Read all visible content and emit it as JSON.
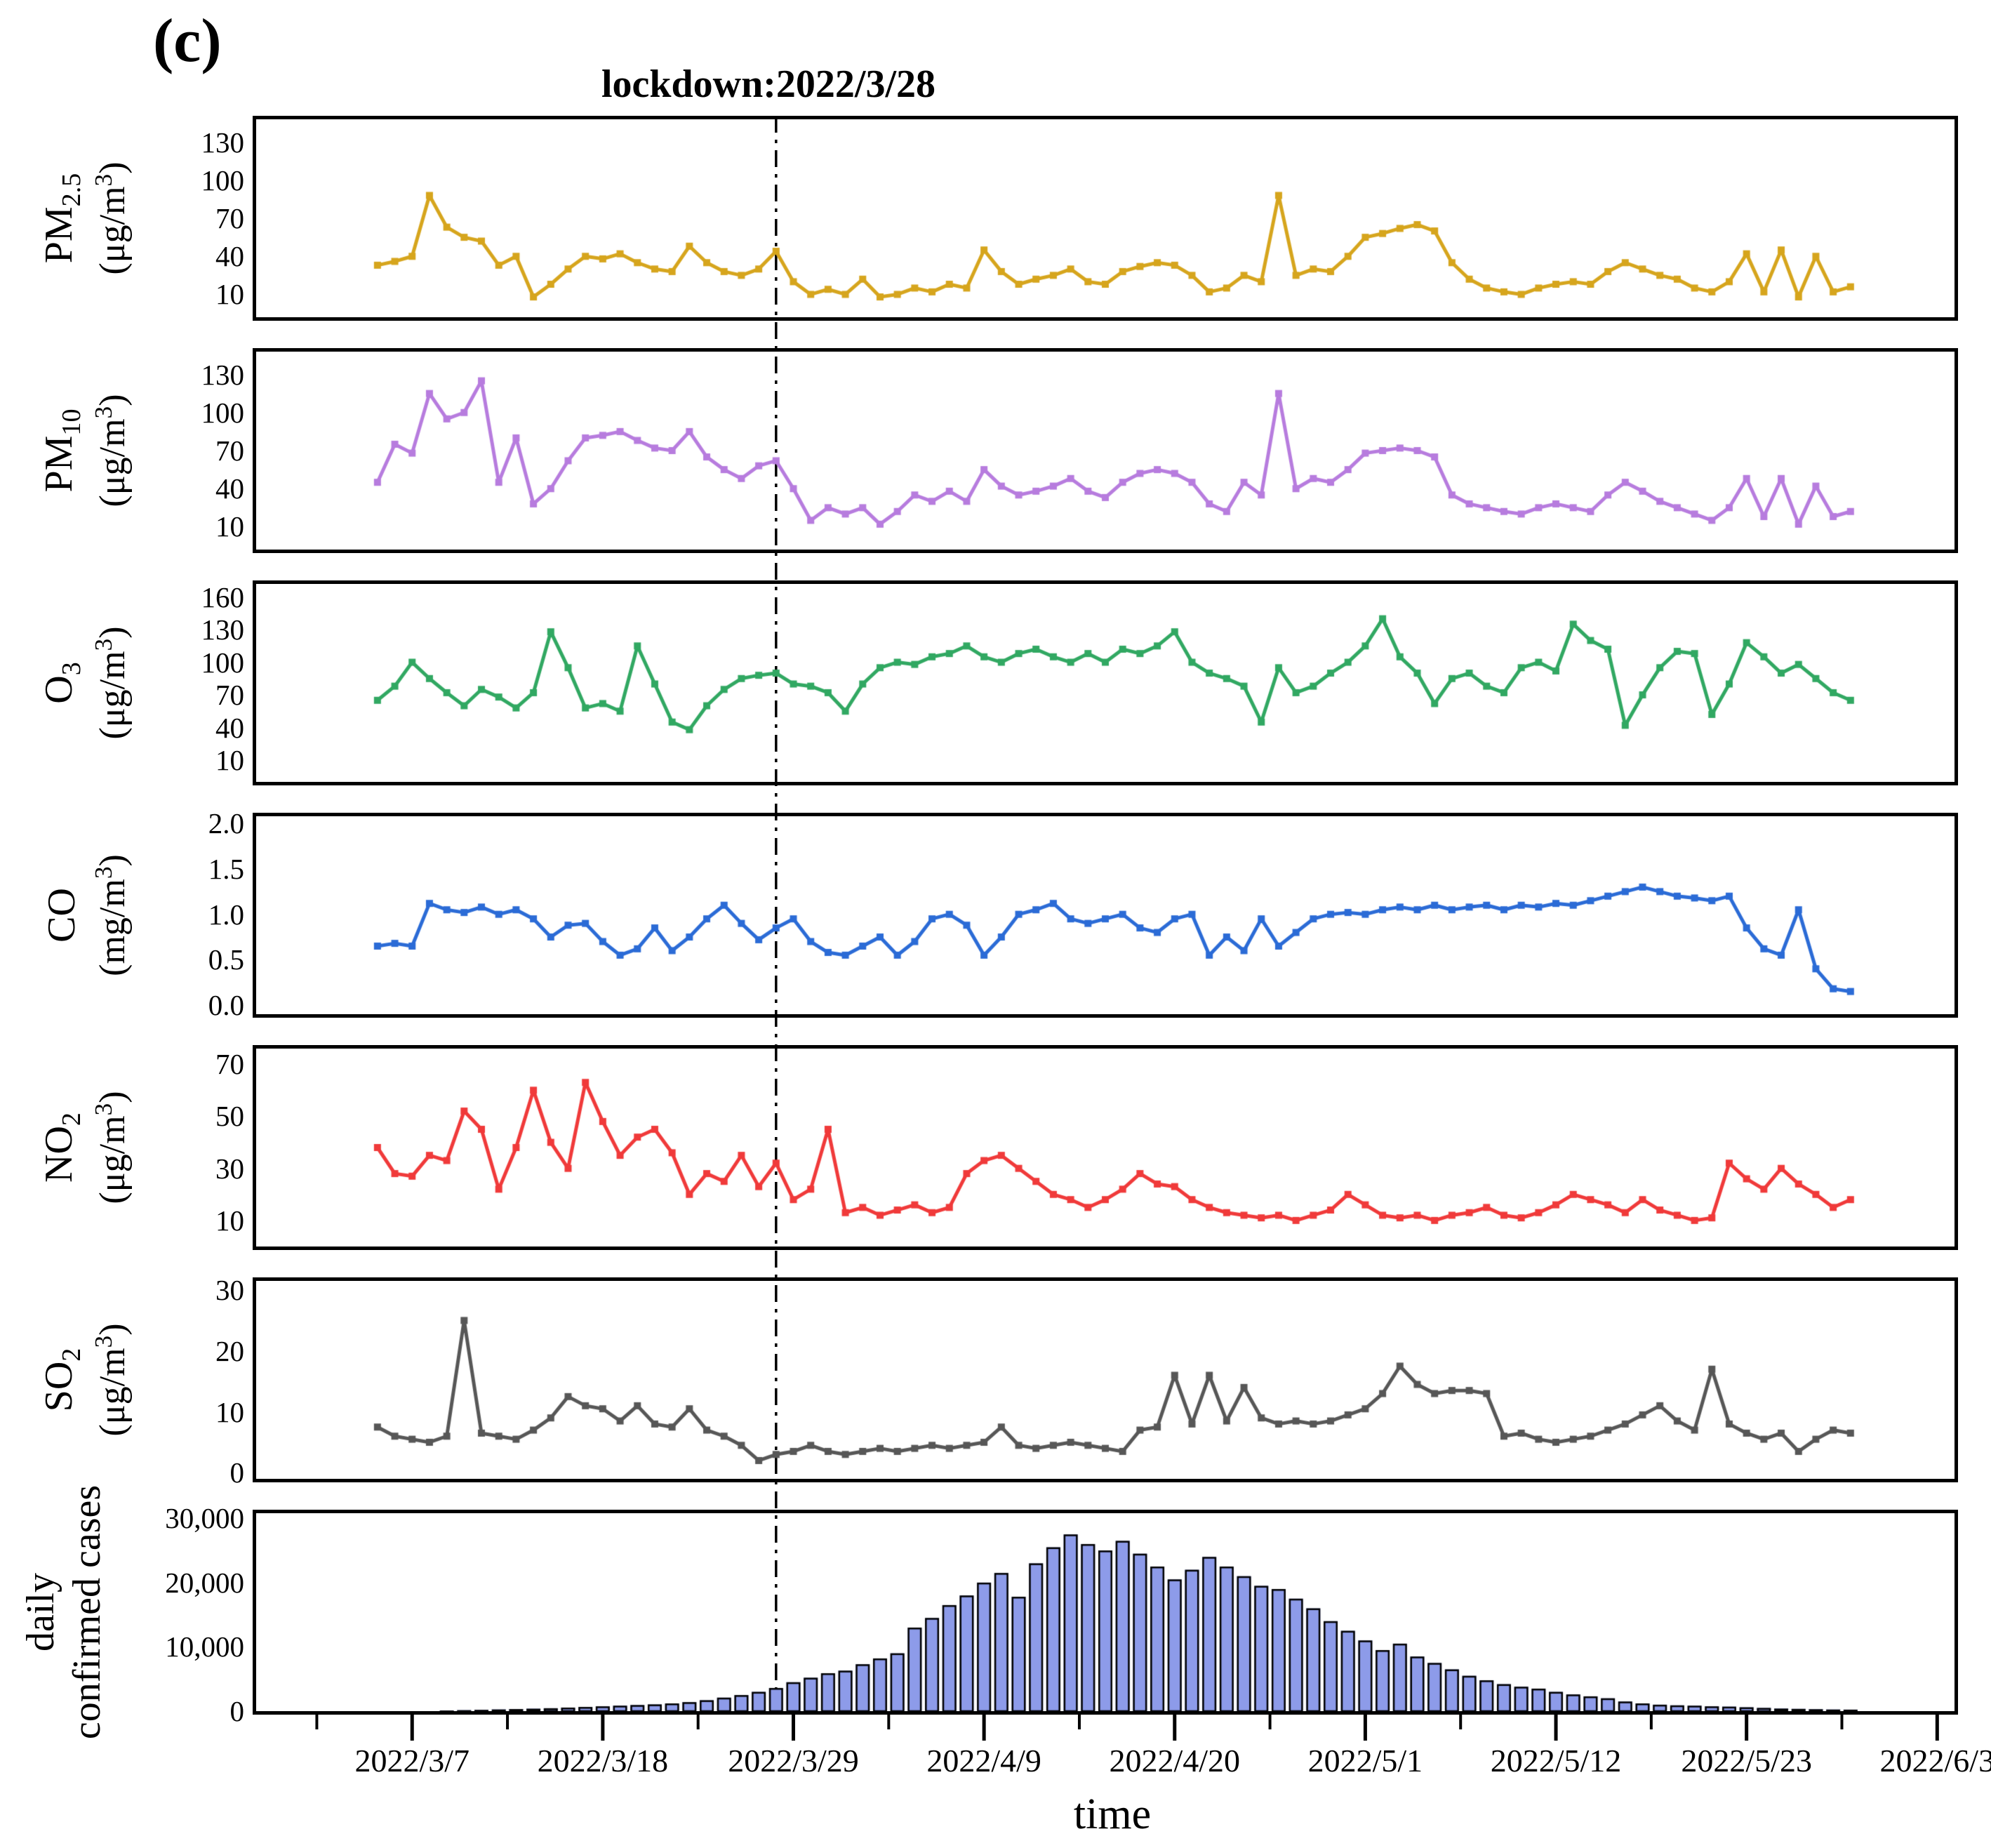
{
  "figure": {
    "panel_label": "(c)",
    "title": "lockdown:2022/3/28",
    "lockdown_date": "2022/3/28",
    "x_axis": {
      "label": "time",
      "tick_labels": [
        "2022/3/7",
        "2022/3/18",
        "2022/3/29",
        "2022/4/9",
        "2022/4/20",
        "2022/5/1",
        "2022/5/12",
        "2022/5/23",
        "2022/6/3"
      ],
      "tick_days": [
        2,
        13,
        24,
        35,
        46,
        57,
        68,
        79,
        90
      ],
      "minor_tick_days": [
        -3.5,
        7.5,
        18.5,
        29.5,
        40.5,
        51.5,
        62.5,
        73.5,
        84.5
      ],
      "x_domain_days": [
        -7,
        91
      ],
      "start_date": "2022/3/5",
      "step_days": 1,
      "lockdown_day": 23
    }
  },
  "chart_data": [
    {
      "type": "line",
      "key": "pm25",
      "name_base": "PM",
      "name_sub": "2.5",
      "unit": "(μg/m³)",
      "color": "#D6A51D",
      "yticks": [
        {
          "v": 10,
          "label": "10"
        },
        {
          "v": 40,
          "label": "40"
        },
        {
          "v": 70,
          "label": "70"
        },
        {
          "v": 100,
          "label": "100"
        },
        {
          "v": 130,
          "label": "130"
        }
      ],
      "ylim": [
        -8,
        148
      ],
      "values": [
        33,
        36,
        40,
        88,
        63,
        55,
        52,
        33,
        40,
        8,
        18,
        30,
        40,
        38,
        42,
        35,
        30,
        28,
        48,
        35,
        28,
        25,
        30,
        44,
        20,
        10,
        14,
        10,
        22,
        8,
        10,
        15,
        12,
        18,
        15,
        45,
        28,
        18,
        22,
        25,
        30,
        20,
        18,
        28,
        32,
        35,
        33,
        25,
        12,
        15,
        25,
        20,
        88,
        25,
        30,
        28,
        40,
        55,
        58,
        62,
        65,
        60,
        35,
        22,
        15,
        12,
        10,
        15,
        18,
        20,
        18,
        28,
        35,
        30,
        25,
        22,
        15,
        12,
        20,
        42,
        12,
        45,
        8,
        40,
        12,
        16
      ]
    },
    {
      "type": "line",
      "key": "pm10",
      "name_base": "PM",
      "name_sub": "10",
      "unit": "(μg/m³)",
      "color": "#B77CDE",
      "yticks": [
        {
          "v": 10,
          "label": "10"
        },
        {
          "v": 40,
          "label": "40"
        },
        {
          "v": 70,
          "label": "70"
        },
        {
          "v": 100,
          "label": "100"
        },
        {
          "v": 130,
          "label": "130"
        }
      ],
      "ylim": [
        -8,
        148
      ],
      "values": [
        45,
        75,
        68,
        115,
        95,
        100,
        125,
        45,
        80,
        28,
        40,
        62,
        80,
        82,
        85,
        78,
        72,
        70,
        85,
        65,
        55,
        48,
        58,
        62,
        40,
        15,
        25,
        20,
        25,
        12,
        22,
        35,
        30,
        38,
        30,
        55,
        42,
        35,
        38,
        42,
        48,
        38,
        33,
        45,
        52,
        55,
        52,
        45,
        28,
        22,
        45,
        35,
        115,
        40,
        48,
        45,
        55,
        68,
        70,
        72,
        70,
        65,
        35,
        28,
        25,
        22,
        20,
        25,
        28,
        25,
        22,
        35,
        45,
        38,
        30,
        25,
        20,
        15,
        25,
        48,
        18,
        48,
        12,
        42,
        18,
        22
      ]
    },
    {
      "type": "line",
      "key": "o3",
      "name_base": "O",
      "name_sub": "3",
      "unit": "(μg/m³)",
      "color": "#31A862",
      "yticks": [
        {
          "v": 10,
          "label": "10"
        },
        {
          "v": 40,
          "label": "40"
        },
        {
          "v": 70,
          "label": "70"
        },
        {
          "v": 100,
          "label": "100"
        },
        {
          "v": 130,
          "label": "130"
        },
        {
          "v": 160,
          "label": "160"
        }
      ],
      "ylim": [
        -10,
        172
      ],
      "values": [
        65,
        78,
        100,
        85,
        72,
        60,
        75,
        68,
        58,
        72,
        128,
        95,
        58,
        62,
        55,
        115,
        80,
        45,
        38,
        60,
        75,
        85,
        88,
        90,
        80,
        78,
        72,
        55,
        80,
        95,
        100,
        98,
        105,
        108,
        115,
        105,
        100,
        108,
        112,
        105,
        100,
        108,
        100,
        112,
        108,
        115,
        128,
        100,
        90,
        85,
        78,
        45,
        95,
        72,
        78,
        90,
        100,
        115,
        140,
        105,
        90,
        62,
        85,
        90,
        78,
        72,
        95,
        100,
        92,
        135,
        120,
        112,
        42,
        70,
        95,
        110,
        108,
        52,
        80,
        118,
        105,
        90,
        98,
        85,
        72,
        65
      ]
    },
    {
      "type": "line",
      "key": "co",
      "name_base": "CO",
      "name_sub": "",
      "unit": "(mg/m³)",
      "color": "#2B6BD6",
      "yticks": [
        {
          "v": 0,
          "label": "0.0"
        },
        {
          "v": 0.5,
          "label": "0.5"
        },
        {
          "v": 1.0,
          "label": "1.0"
        },
        {
          "v": 1.5,
          "label": "1.5"
        },
        {
          "v": 2.0,
          "label": "2.0"
        }
      ],
      "ylim": [
        -0.1,
        2.08
      ],
      "values": [
        0.65,
        0.68,
        0.65,
        1.12,
        1.05,
        1.02,
        1.08,
        1.0,
        1.05,
        0.95,
        0.75,
        0.88,
        0.9,
        0.7,
        0.55,
        0.62,
        0.85,
        0.6,
        0.75,
        0.95,
        1.1,
        0.9,
        0.72,
        0.85,
        0.95,
        0.7,
        0.58,
        0.55,
        0.65,
        0.75,
        0.55,
        0.7,
        0.95,
        1.0,
        0.88,
        0.55,
        0.75,
        1.0,
        1.05,
        1.12,
        0.95,
        0.9,
        0.95,
        1.0,
        0.85,
        0.8,
        0.95,
        1.0,
        0.55,
        0.75,
        0.6,
        0.95,
        0.65,
        0.8,
        0.95,
        1.0,
        1.02,
        1.0,
        1.05,
        1.08,
        1.05,
        1.1,
        1.05,
        1.08,
        1.1,
        1.05,
        1.1,
        1.08,
        1.12,
        1.1,
        1.15,
        1.2,
        1.25,
        1.3,
        1.25,
        1.2,
        1.18,
        1.15,
        1.2,
        0.85,
        0.62,
        0.55,
        1.05,
        0.4,
        0.18,
        0.15
      ]
    },
    {
      "type": "line",
      "key": "no2",
      "name_base": "NO",
      "name_sub": "2",
      "unit": "(μg/m³)",
      "color": "#F03A3A",
      "yticks": [
        {
          "v": 10,
          "label": "10"
        },
        {
          "v": 30,
          "label": "30"
        },
        {
          "v": 50,
          "label": "50"
        },
        {
          "v": 70,
          "label": "70"
        }
      ],
      "ylim": [
        0,
        76
      ],
      "values": [
        38,
        28,
        27,
        35,
        33,
        52,
        45,
        22,
        38,
        60,
        40,
        30,
        63,
        48,
        35,
        42,
        45,
        36,
        20,
        28,
        25,
        35,
        23,
        32,
        18,
        22,
        45,
        13,
        15,
        12,
        14,
        16,
        13,
        15,
        28,
        33,
        35,
        30,
        25,
        20,
        18,
        15,
        18,
        22,
        28,
        24,
        23,
        18,
        15,
        13,
        12,
        11,
        12,
        10,
        12,
        14,
        20,
        16,
        12,
        11,
        12,
        10,
        12,
        13,
        15,
        12,
        11,
        13,
        16,
        20,
        18,
        16,
        13,
        18,
        14,
        12,
        10,
        11,
        32,
        26,
        22,
        30,
        24,
        20,
        15,
        18
      ]
    },
    {
      "type": "line",
      "key": "so2",
      "name_base": "SO",
      "name_sub": "2",
      "unit": "(μg/m³)",
      "color": "#575757",
      "yticks": [
        {
          "v": 0,
          "label": "0"
        },
        {
          "v": 10,
          "label": "10"
        },
        {
          "v": 20,
          "label": "20"
        },
        {
          "v": 30,
          "label": "30"
        }
      ],
      "ylim": [
        -1,
        31.5
      ],
      "values": [
        7.5,
        6,
        5.5,
        5,
        6,
        25,
        6.5,
        6,
        5.5,
        7,
        9,
        12.5,
        11,
        10.5,
        8.5,
        11,
        8,
        7.5,
        10.5,
        7,
        6,
        4.5,
        2,
        3,
        3.5,
        4.5,
        3.5,
        3,
        3.5,
        4,
        3.5,
        4,
        4.5,
        4,
        4.5,
        5,
        7.5,
        4.5,
        4,
        4.5,
        5,
        4.5,
        4,
        3.5,
        7,
        7.5,
        16,
        8,
        16,
        8.5,
        14,
        9,
        8,
        8.5,
        8,
        8.5,
        9.5,
        10.5,
        13,
        17.5,
        14.5,
        13,
        13.5,
        13.5,
        13,
        6,
        6.5,
        5.5,
        5,
        5.5,
        6,
        7,
        8,
        9.5,
        11,
        8.5,
        7,
        17,
        8,
        6.5,
        5.5,
        6.5,
        3.5,
        5.5,
        7,
        6.5
      ]
    },
    {
      "type": "bar",
      "key": "cases",
      "name_line1": "daily",
      "name_line2": "confirmed cases",
      "unit": "",
      "color": "#8D9BE9",
      "bar_border": "#000000",
      "yticks": [
        {
          "v": 0,
          "label": "0"
        },
        {
          "v": 10000,
          "label": "10,000"
        },
        {
          "v": 20000,
          "label": "20,000"
        },
        {
          "v": 30000,
          "label": "30,000"
        }
      ],
      "ylim": [
        0,
        30800
      ],
      "values": [
        30,
        45,
        60,
        80,
        100,
        150,
        200,
        260,
        320,
        380,
        450,
        550,
        650,
        750,
        850,
        950,
        1050,
        1200,
        1400,
        1700,
        2100,
        2500,
        3000,
        3600,
        4500,
        5200,
        5900,
        6300,
        7300,
        8200,
        9000,
        13000,
        14500,
        16500,
        18000,
        20000,
        21500,
        17800,
        23000,
        25500,
        27500,
        26000,
        25000,
        26500,
        24500,
        22500,
        20500,
        22000,
        24000,
        22500,
        21000,
        19500,
        19000,
        17500,
        16000,
        14000,
        12500,
        11000,
        9500,
        10500,
        8500,
        7500,
        6500,
        5500,
        4800,
        4200,
        3800,
        3500,
        3000,
        2600,
        2300,
        2000,
        1500,
        1200,
        1000,
        900,
        850,
        750,
        700,
        600,
        500,
        400,
        350,
        300,
        250,
        230
      ]
    }
  ]
}
